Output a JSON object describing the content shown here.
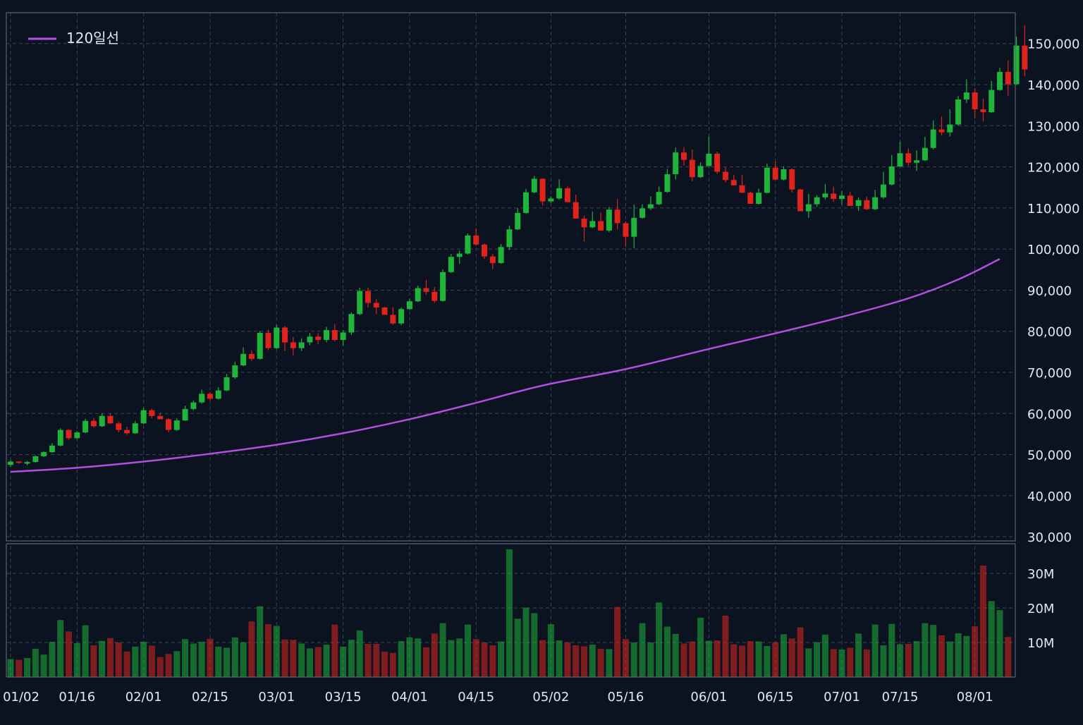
{
  "chart_data": {
    "type": "candlestick",
    "title": "",
    "colors": {
      "background": "#0b1220",
      "grid": "#3a4454",
      "up": "#1fb53a",
      "down": "#e0241b",
      "ma": "#b04fe0",
      "text": "#e6e8ec"
    },
    "legend": {
      "label": "120일선",
      "position": "top-left"
    },
    "price_axis": {
      "ticks": [
        150000,
        140000,
        130000,
        120000,
        110000,
        100000,
        90000,
        80000,
        70000,
        60000,
        50000,
        40000,
        30000
      ],
      "tick_labels": [
        "150,000",
        "140,000",
        "130,000",
        "120,000",
        "110,000",
        "100,000",
        "90,000",
        "80,000",
        "70,000",
        "60,000",
        "50,000",
        "40,000",
        "30,000"
      ],
      "range": [
        29000,
        157500
      ]
    },
    "volume_axis": {
      "ticks": [
        30,
        20,
        10
      ],
      "tick_labels": [
        "30M",
        "20M",
        "10M"
      ],
      "unit": "M",
      "range": [
        0,
        38
      ]
    },
    "x_labels": [
      {
        "label": "01/02",
        "index": 0
      },
      {
        "label": "01/16",
        "index": 8
      },
      {
        "label": "02/01",
        "index": 16
      },
      {
        "label": "02/15",
        "index": 24
      },
      {
        "label": "03/01",
        "index": 32
      },
      {
        "label": "03/15",
        "index": 40
      },
      {
        "label": "04/01",
        "index": 48
      },
      {
        "label": "04/15",
        "index": 56
      },
      {
        "label": "05/02",
        "index": 65
      },
      {
        "label": "05/16",
        "index": 74
      },
      {
        "label": "06/01",
        "index": 84
      },
      {
        "label": "06/15",
        "index": 92
      },
      {
        "label": "07/01",
        "index": 100
      },
      {
        "label": "07/15",
        "index": 107
      },
      {
        "label": "08/01",
        "index": 116
      }
    ],
    "candles": [
      [
        47500,
        48600,
        47000,
        48300
      ],
      [
        48300,
        48400,
        47800,
        48000
      ],
      [
        47800,
        48500,
        47400,
        48200
      ],
      [
        48200,
        49800,
        48000,
        49600
      ],
      [
        49600,
        50800,
        49400,
        50600
      ],
      [
        50600,
        52800,
        50400,
        52200
      ],
      [
        52200,
        56400,
        52000,
        56000
      ],
      [
        56000,
        56200,
        53600,
        54000
      ],
      [
        54000,
        55700,
        53800,
        55400
      ],
      [
        55400,
        58700,
        55200,
        58200
      ],
      [
        58200,
        58900,
        56600,
        56900
      ],
      [
        56900,
        60100,
        56700,
        59400
      ],
      [
        59400,
        60000,
        57400,
        57600
      ],
      [
        57600,
        58000,
        55400,
        56000
      ],
      [
        56000,
        56800,
        54800,
        55200
      ],
      [
        55200,
        58200,
        55000,
        57600
      ],
      [
        57600,
        61400,
        57400,
        60800
      ],
      [
        60800,
        61200,
        58900,
        59400
      ],
      [
        59400,
        60200,
        58600,
        58600
      ],
      [
        58600,
        58900,
        55400,
        56000
      ],
      [
        56000,
        58900,
        55800,
        58300
      ],
      [
        58300,
        61900,
        58200,
        61100
      ],
      [
        61100,
        63200,
        60800,
        62700
      ],
      [
        62700,
        65800,
        62400,
        64800
      ],
      [
        64800,
        65200,
        63200,
        63600
      ],
      [
        63600,
        66400,
        63400,
        65600
      ],
      [
        65600,
        69600,
        65400,
        68800
      ],
      [
        68800,
        72600,
        68400,
        71700
      ],
      [
        71700,
        76100,
        71500,
        74500
      ],
      [
        74500,
        75400,
        72800,
        73300
      ],
      [
        73300,
        80100,
        73100,
        79600
      ],
      [
        79600,
        80400,
        75400,
        75900
      ],
      [
        75900,
        81600,
        75700,
        80900
      ],
      [
        80900,
        81300,
        75200,
        77300
      ],
      [
        77300,
        78600,
        74200,
        75900
      ],
      [
        75900,
        78300,
        75200,
        77300
      ],
      [
        77300,
        79600,
        76600,
        78700
      ],
      [
        78700,
        79500,
        76900,
        77900
      ],
      [
        77900,
        81100,
        77300,
        80300
      ],
      [
        80300,
        81800,
        77500,
        77900
      ],
      [
        77900,
        80300,
        76500,
        79700
      ],
      [
        79700,
        84600,
        79100,
        84200
      ],
      [
        84200,
        90600,
        83900,
        89800
      ],
      [
        89800,
        90600,
        85800,
        86900
      ],
      [
        86900,
        87800,
        84200,
        85800
      ],
      [
        85800,
        85900,
        84000,
        84000
      ],
      [
        84000,
        85900,
        81600,
        81900
      ],
      [
        81900,
        85800,
        81500,
        85400
      ],
      [
        85400,
        87900,
        85200,
        87300
      ],
      [
        87300,
        91100,
        87100,
        90500
      ],
      [
        90500,
        92500,
        88900,
        89600
      ],
      [
        89600,
        90800,
        86900,
        87400
      ],
      [
        87400,
        95100,
        87200,
        94400
      ],
      [
        94400,
        98800,
        94200,
        98100
      ],
      [
        98100,
        99600,
        96400,
        98900
      ],
      [
        98900,
        103800,
        98700,
        103300
      ],
      [
        103300,
        105100,
        100800,
        101100
      ],
      [
        101100,
        101400,
        97600,
        98200
      ],
      [
        98200,
        98800,
        95100,
        96600
      ],
      [
        96600,
        101200,
        96400,
        100500
      ],
      [
        100500,
        105700,
        99800,
        104800
      ],
      [
        104800,
        110000,
        104600,
        108800
      ],
      [
        108800,
        114600,
        108600,
        113800
      ],
      [
        113800,
        117800,
        113600,
        117100
      ],
      [
        117100,
        117200,
        110600,
        111600
      ],
      [
        111600,
        112800,
        111200,
        112300
      ],
      [
        112300,
        117000,
        112000,
        114800
      ],
      [
        114800,
        115200,
        111400,
        111400
      ],
      [
        111400,
        113200,
        107400,
        107400
      ],
      [
        107400,
        108100,
        101800,
        105300
      ],
      [
        105300,
        109100,
        105100,
        106800
      ],
      [
        106800,
        108900,
        104500,
        104500
      ],
      [
        104500,
        110200,
        104100,
        109600
      ],
      [
        109600,
        112200,
        104800,
        106300
      ],
      [
        106300,
        106700,
        100600,
        103000
      ],
      [
        103000,
        110800,
        100200,
        107600
      ],
      [
        107600,
        110900,
        107400,
        109900
      ],
      [
        109900,
        112800,
        109500,
        110900
      ],
      [
        110900,
        115200,
        110700,
        113900
      ],
      [
        113900,
        119500,
        113700,
        118200
      ],
      [
        118200,
        124700,
        116900,
        123500
      ],
      [
        123500,
        124800,
        120300,
        121700
      ],
      [
        121700,
        124200,
        116500,
        117500
      ],
      [
        117500,
        121100,
        117300,
        120200
      ],
      [
        120200,
        127300,
        120000,
        123200
      ],
      [
        123200,
        123700,
        118300,
        118800
      ],
      [
        118800,
        119900,
        116200,
        116800
      ],
      [
        116800,
        118000,
        115500,
        115500
      ],
      [
        115500,
        118000,
        113700,
        113700
      ],
      [
        113700,
        114000,
        111000,
        111000
      ],
      [
        111000,
        114700,
        110800,
        113700
      ],
      [
        113700,
        120800,
        113500,
        119800
      ],
      [
        119800,
        121300,
        116800,
        116900
      ],
      [
        116900,
        120100,
        116700,
        119400
      ],
      [
        119400,
        119700,
        113800,
        114500
      ],
      [
        114500,
        114700,
        109200,
        109200
      ],
      [
        109200,
        113400,
        107600,
        110900
      ],
      [
        110900,
        113100,
        110300,
        112600
      ],
      [
        112600,
        115800,
        112100,
        113500
      ],
      [
        113500,
        115200,
        111500,
        112200
      ],
      [
        112200,
        114100,
        110800,
        113000
      ],
      [
        113000,
        113900,
        110500,
        110500
      ],
      [
        110500,
        112600,
        109300,
        111900
      ],
      [
        111900,
        112800,
        109500,
        109700
      ],
      [
        109700,
        114400,
        109500,
        112600
      ],
      [
        112600,
        118800,
        112200,
        115700
      ],
      [
        115700,
        122900,
        115500,
        120100
      ],
      [
        120100,
        126100,
        119900,
        123300
      ],
      [
        123300,
        124500,
        120200,
        121000
      ],
      [
        121000,
        124000,
        119000,
        121600
      ],
      [
        121600,
        127300,
        121400,
        124600
      ],
      [
        124600,
        131300,
        124200,
        129100
      ],
      [
        129100,
        132300,
        127600,
        128400
      ],
      [
        128400,
        134000,
        127400,
        130300
      ],
      [
        130300,
        137200,
        130000,
        136400
      ],
      [
        136400,
        141300,
        135500,
        138100
      ],
      [
        138100,
        139100,
        131800,
        134000
      ],
      [
        134000,
        136600,
        131000,
        133300
      ],
      [
        133300,
        140900,
        133100,
        138700
      ],
      [
        138700,
        144100,
        138500,
        143100
      ],
      [
        143100,
        145900,
        137300,
        140100
      ],
      [
        140100,
        151700,
        139900,
        149500
      ],
      [
        149500,
        154500,
        142000,
        143700
      ]
    ],
    "volumes_m": [
      5.2,
      5.0,
      5.5,
      8.2,
      6.5,
      10.2,
      16.5,
      13.2,
      9.8,
      15.0,
      9.2,
      10.5,
      11.3,
      10.0,
      7.4,
      8.8,
      10.2,
      9.1,
      5.8,
      6.7,
      7.5,
      11.0,
      9.7,
      10.2,
      11.1,
      8.8,
      8.5,
      11.5,
      10.1,
      16.1,
      20.5,
      15.3,
      14.8,
      10.9,
      10.8,
      9.7,
      8.3,
      8.7,
      9.4,
      15.2,
      8.8,
      10.8,
      13.5,
      9.6,
      9.6,
      7.4,
      7.0,
      10.4,
      11.5,
      11.2,
      8.6,
      12.6,
      15.6,
      10.7,
      11.2,
      15.2,
      11.0,
      10.0,
      9.2,
      10.3,
      37.0,
      16.9,
      20.1,
      18.5,
      10.7,
      15.3,
      10.6,
      10.1,
      9.2,
      8.9,
      9.4,
      8.2,
      8.1,
      20.3,
      11.0,
      10.0,
      15.6,
      10.0,
      21.6,
      14.6,
      12.5,
      9.7,
      10.3,
      17.2,
      10.5,
      10.6,
      17.8,
      9.5,
      9.1,
      10.4,
      10.3,
      9.0,
      10.1,
      12.4,
      11.2,
      14.4,
      8.3,
      10.1,
      12.3,
      8.1,
      8.0,
      8.5,
      12.6,
      8.0,
      15.2,
      9.2,
      15.4,
      9.5,
      9.6,
      10.4,
      15.6,
      15.1,
      12.1,
      10.3,
      12.7,
      11.9,
      14.7,
      32.3,
      22.0,
      19.4,
      11.6
    ],
    "ma120": [
      {
        "index": 0,
        "value": 45800
      },
      {
        "index": 8,
        "value": 46800
      },
      {
        "index": 16,
        "value": 48300
      },
      {
        "index": 24,
        "value": 50200
      },
      {
        "index": 32,
        "value": 52400
      },
      {
        "index": 40,
        "value": 55200
      },
      {
        "index": 48,
        "value": 58600
      },
      {
        "index": 56,
        "value": 62600
      },
      {
        "index": 64,
        "value": 66800
      },
      {
        "index": 74,
        "value": 70800
      },
      {
        "index": 84,
        "value": 75700
      },
      {
        "index": 92,
        "value": 79500
      },
      {
        "index": 100,
        "value": 83500
      },
      {
        "index": 108,
        "value": 88000
      },
      {
        "index": 114,
        "value": 92600
      },
      {
        "index": 119,
        "value": 97600
      }
    ]
  }
}
